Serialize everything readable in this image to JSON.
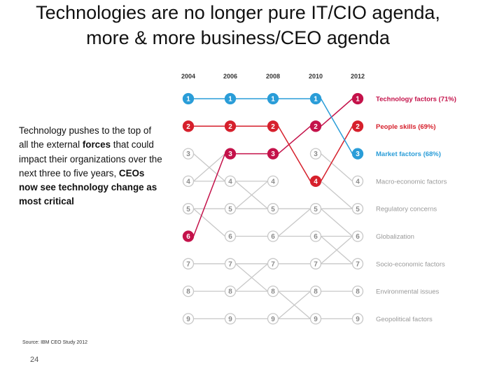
{
  "title": {
    "line1": "Technologies are no longer pure IT/CIO agenda,",
    "line2": "more & more business/CEO agenda"
  },
  "description": {
    "p1": "Technology pushes to the top of all the external",
    "p2_bold": "forces",
    "p3": " that could impact their organizations over the next three to five years,",
    "p4_bold": " CEOs now see technology change as most critical"
  },
  "source": "Source: IBM CEO Study 2012",
  "page_number": "24",
  "chart_data": {
    "type": "bump",
    "years": [
      "2004",
      "2006",
      "2008",
      "2010",
      "2012"
    ],
    "ranks": [
      1,
      2,
      3,
      4,
      5,
      6,
      7,
      8,
      9
    ],
    "factors_2012": [
      "Technology factors (71%)",
      "People skills (69%)",
      "Market factors (68%)",
      "Macro-economic factors",
      "Regulatory concerns",
      "Globalization",
      "Socio-economic factors",
      "Environmental issues",
      "Geopolitical factors"
    ],
    "highlighted": [
      {
        "factor": "Technology factors",
        "color": "#c4124a",
        "ranks": [
          6,
          3,
          3,
          2,
          1
        ]
      },
      {
        "factor": "People skills",
        "color": "#d6202c",
        "ranks": [
          2,
          2,
          2,
          4,
          2
        ]
      },
      {
        "factor": "Market factors",
        "color": "#2a9dd8",
        "ranks": [
          1,
          1,
          1,
          1,
          3
        ]
      }
    ],
    "colors": {
      "technology": "#c4124a",
      "people": "#d6202c",
      "market": "#2a9dd8",
      "grey": "#c8c8c8",
      "grey_text": "#8a8a8a"
    }
  }
}
